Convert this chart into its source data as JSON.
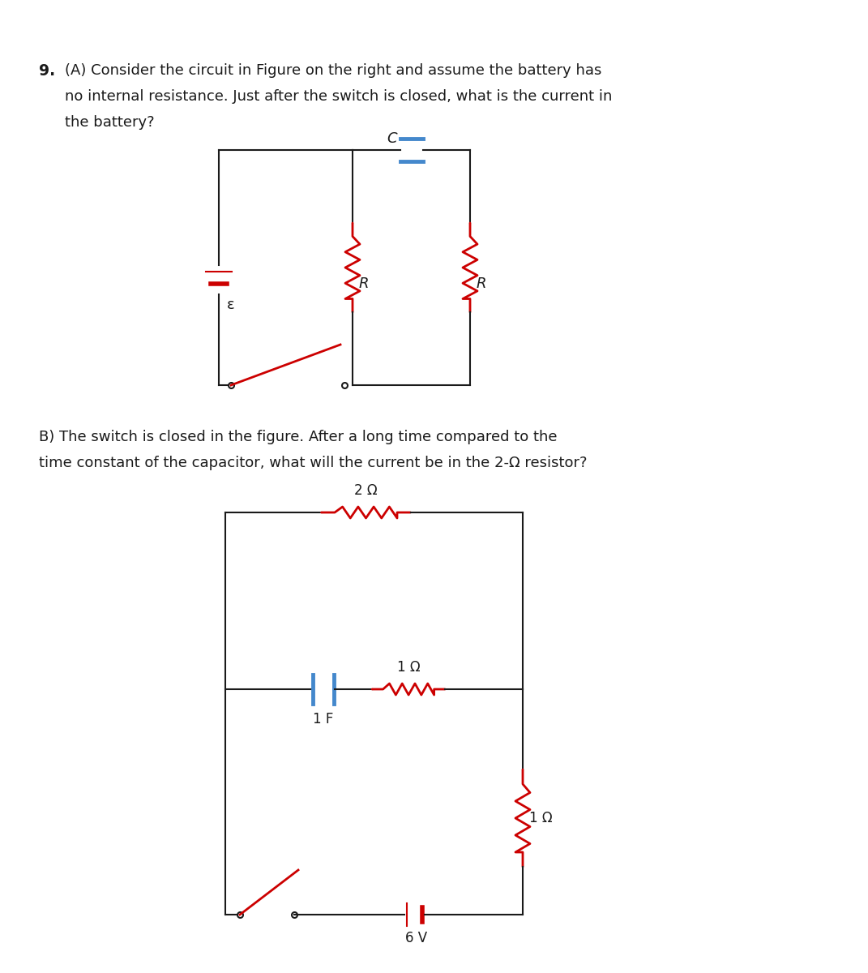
{
  "bg_color": "#ffffff",
  "text_color": "#1a1a1a",
  "wire_color": "#1a1a1a",
  "resistor_color": "#cc0000",
  "capacitor_color": "#4488cc",
  "battery_color": "#cc0000",
  "switch_color": "#cc0000",
  "fig_width": 10.71,
  "fig_height": 12.0,
  "dpi": 100,
  "text_9_bold": "9.",
  "text_A": "(A) Consider the circuit in Figure on the right and assume the battery has",
  "text_A2": "no internal resistance. Just after the switch is closed, what is the current in",
  "text_A3": "the battery?",
  "text_B": "B) The switch is closed in the figure. After a long time compared to the",
  "text_B2": "time constant of the capacitor, what will the current be in the 2-Ω resistor?",
  "label_C": "C",
  "label_R": "R",
  "label_eps": "ε",
  "label_2ohm": "2 Ω",
  "label_1ohm_h": "1 Ω",
  "label_1ohm_v": "1 Ω",
  "label_1F": "1 F",
  "label_6V": "6 V"
}
